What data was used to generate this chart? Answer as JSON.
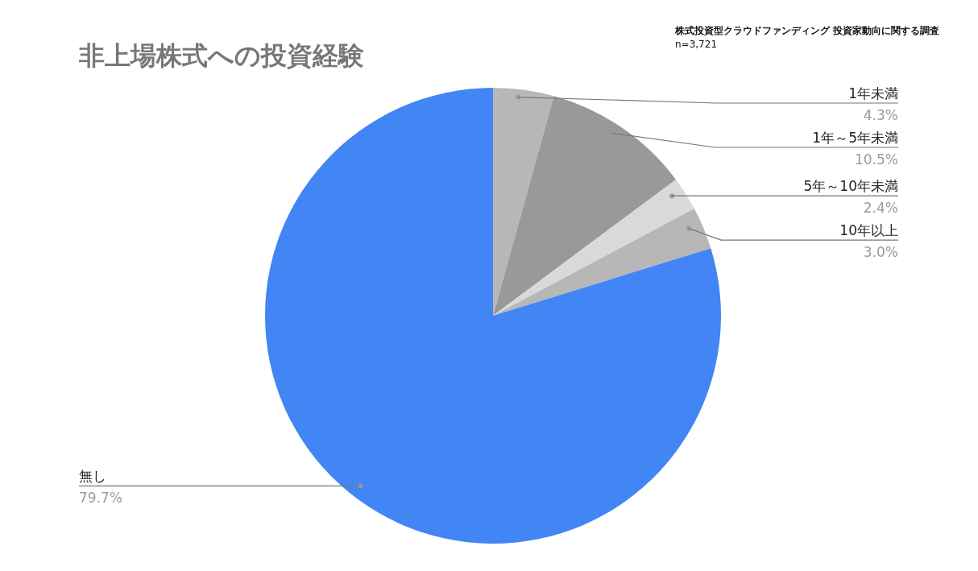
{
  "chart_data": {
    "type": "pie",
    "title": "非上場株式への投資経験",
    "categories": [
      "1年未満",
      "1年～5年未満",
      "5年～10年未満",
      "10年以上",
      "無し"
    ],
    "values": [
      4.3,
      10.5,
      2.4,
      3.0,
      79.7
    ],
    "value_labels": [
      "4.3%",
      "10.5%",
      "2.4%",
      "3.0%",
      "79.7%"
    ],
    "colors": [
      "#b7b7b7",
      "#999999",
      "#d9d9d9",
      "#b7b7b7",
      "#4285f4"
    ],
    "legend": false,
    "annotations": [
      "株式投資型クラウドファンディング 投資家動向に関する調査",
      "n=3,721"
    ]
  }
}
